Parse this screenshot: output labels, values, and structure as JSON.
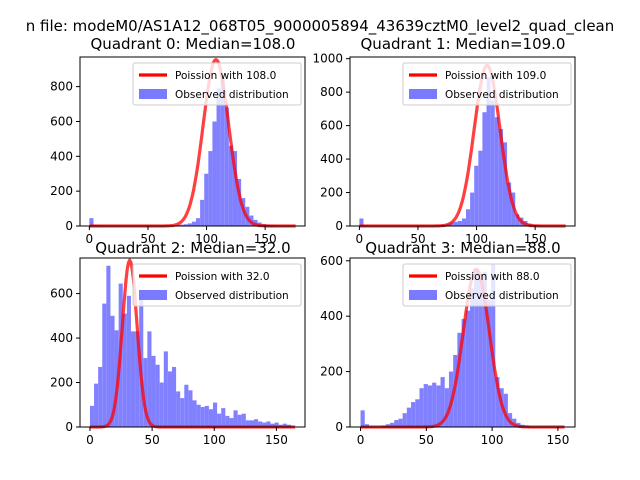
{
  "suptitle": "n file: modeM0/AS1A12_068T05_9000005894_43639cztM0_level2_quad_clean",
  "colors": {
    "hist": "#7a7aff",
    "fit": "#ff0000",
    "axis": "#000000",
    "bg": "#ffffff"
  },
  "chart_data": [
    {
      "type": "bar",
      "title": "Quadrant 0: Median=108.0",
      "xlim": [
        -8,
        184
      ],
      "ylim": [
        0,
        970
      ],
      "xticks": [
        0,
        50,
        100,
        150
      ],
      "yticks": [
        0,
        200,
        400,
        600,
        800
      ],
      "bin_width": 3.5,
      "bins": [
        [
          0,
          45
        ],
        [
          3.5,
          5
        ],
        [
          70,
          3
        ],
        [
          73.5,
          5
        ],
        [
          77,
          8
        ],
        [
          80.5,
          10
        ],
        [
          84,
          15
        ],
        [
          87.5,
          25
        ],
        [
          91,
          45
        ],
        [
          94.5,
          150
        ],
        [
          98,
          300
        ],
        [
          101.5,
          430
        ],
        [
          105,
          600
        ],
        [
          108.5,
          790
        ],
        [
          112,
          850
        ],
        [
          115.5,
          680
        ],
        [
          119,
          460
        ],
        [
          122.5,
          430
        ],
        [
          126,
          270
        ],
        [
          129.5,
          160
        ],
        [
          133,
          110
        ],
        [
          136.5,
          60
        ],
        [
          140,
          35
        ],
        [
          143.5,
          20
        ],
        [
          147,
          12
        ],
        [
          150.5,
          8
        ],
        [
          154,
          5
        ],
        [
          157.5,
          3
        ]
      ],
      "fit": {
        "label": "Poission with 108.0",
        "mean": 108,
        "peak": 955
      },
      "legend": {
        "placement": "top-right",
        "entries": [
          "Poission with 108.0",
          "Observed distribution"
        ]
      }
    },
    {
      "type": "bar",
      "title": "Quadrant 1: Median=109.0",
      "xlim": [
        -8,
        184
      ],
      "ylim": [
        0,
        1010
      ],
      "xticks": [
        0,
        50,
        100,
        150
      ],
      "yticks": [
        0,
        200,
        400,
        600,
        800,
        1000
      ],
      "bin_width": 3.5,
      "bins": [
        [
          0,
          45
        ],
        [
          3.5,
          5
        ],
        [
          66.5,
          5
        ],
        [
          70,
          8
        ],
        [
          73.5,
          12
        ],
        [
          77,
          20
        ],
        [
          80.5,
          25
        ],
        [
          84,
          30
        ],
        [
          87.5,
          45
        ],
        [
          91,
          100
        ],
        [
          94.5,
          200
        ],
        [
          98,
          360
        ],
        [
          101.5,
          450
        ],
        [
          105,
          680
        ],
        [
          108.5,
          890
        ],
        [
          112,
          750
        ],
        [
          115.5,
          650
        ],
        [
          119,
          580
        ],
        [
          122.5,
          500
        ],
        [
          126,
          260
        ],
        [
          129.5,
          200
        ],
        [
          133,
          70
        ],
        [
          136.5,
          50
        ],
        [
          140,
          30
        ],
        [
          143.5,
          15
        ],
        [
          147,
          8
        ],
        [
          150.5,
          5
        ]
      ],
      "fit": {
        "label": "Poission with 109.0",
        "mean": 109,
        "peak": 960
      },
      "legend": {
        "placement": "top-right",
        "entries": [
          "Poission with 109.0",
          "Observed distribution"
        ]
      }
    },
    {
      "type": "bar",
      "title": "Quadrant 2: Median=32.0",
      "xlim": [
        -8,
        173
      ],
      "ylim": [
        0,
        760
      ],
      "xticks": [
        0,
        50,
        100,
        150
      ],
      "yticks": [
        0,
        200,
        400,
        600
      ],
      "bin_width": 3.3,
      "bins": [
        [
          0,
          95
        ],
        [
          3.3,
          195
        ],
        [
          6.6,
          270
        ],
        [
          9.9,
          555
        ],
        [
          13.2,
          725
        ],
        [
          16.5,
          500
        ],
        [
          19.8,
          435
        ],
        [
          23.1,
          645
        ],
        [
          26.4,
          510
        ],
        [
          29.7,
          590
        ],
        [
          33,
          430
        ],
        [
          36.3,
          430
        ],
        [
          39.6,
          610
        ],
        [
          42.9,
          310
        ],
        [
          46.2,
          430
        ],
        [
          49.5,
          320
        ],
        [
          52.8,
          280
        ],
        [
          56.1,
          200
        ],
        [
          59.4,
          340
        ],
        [
          62.7,
          250
        ],
        [
          66,
          270
        ],
        [
          69.3,
          160
        ],
        [
          72.6,
          130
        ],
        [
          75.9,
          190
        ],
        [
          79.2,
          165
        ],
        [
          82.5,
          120
        ],
        [
          85.8,
          100
        ],
        [
          89.1,
          90
        ],
        [
          92.4,
          95
        ],
        [
          95.7,
          80
        ],
        [
          99,
          110
        ],
        [
          102.3,
          60
        ],
        [
          105.6,
          85
        ],
        [
          108.9,
          50
        ],
        [
          112.2,
          40
        ],
        [
          115.5,
          75
        ],
        [
          118.8,
          55
        ],
        [
          122.1,
          60
        ],
        [
          125.4,
          30
        ],
        [
          128.7,
          30
        ],
        [
          132,
          35
        ],
        [
          135.3,
          25
        ],
        [
          138.6,
          20
        ],
        [
          141.9,
          25
        ],
        [
          145.2,
          15
        ],
        [
          148.5,
          20
        ],
        [
          151.8,
          10
        ],
        [
          155.1,
          15
        ],
        [
          158.4,
          10
        ]
      ],
      "fit": {
        "label": "Poission with 32.0",
        "mean": 32,
        "peak": 750
      },
      "legend": {
        "placement": "top-right",
        "entries": [
          "Poission with 32.0",
          "Observed distribution"
        ]
      }
    },
    {
      "type": "bar",
      "title": "Quadrant 3: Median=88.0",
      "xlim": [
        -8,
        163
      ],
      "ylim": [
        0,
        610
      ],
      "xticks": [
        0,
        50,
        100,
        150
      ],
      "yticks": [
        0,
        200,
        400,
        600
      ],
      "bin_width": 3.2,
      "bins": [
        [
          0,
          60
        ],
        [
          3.2,
          10
        ],
        [
          16,
          5
        ],
        [
          19.2,
          10
        ],
        [
          22.4,
          15
        ],
        [
          25.6,
          25
        ],
        [
          28.8,
          30
        ],
        [
          32,
          50
        ],
        [
          35.2,
          70
        ],
        [
          38.4,
          90
        ],
        [
          41.6,
          100
        ],
        [
          44.8,
          140
        ],
        [
          48,
          155
        ],
        [
          51.2,
          150
        ],
        [
          54.4,
          160
        ],
        [
          57.6,
          150
        ],
        [
          60.8,
          180
        ],
        [
          64,
          140
        ],
        [
          67.2,
          200
        ],
        [
          70.4,
          260
        ],
        [
          73.6,
          340
        ],
        [
          76.8,
          390
        ],
        [
          80,
          420
        ],
        [
          83.2,
          500
        ],
        [
          86.4,
          570
        ],
        [
          89.6,
          540
        ],
        [
          92.8,
          560
        ],
        [
          96,
          460
        ],
        [
          99.2,
          590
        ],
        [
          102.4,
          180
        ],
        [
          105.6,
          140
        ],
        [
          108.8,
          120
        ],
        [
          112,
          50
        ],
        [
          115.2,
          30
        ],
        [
          118.4,
          15
        ],
        [
          121.6,
          8
        ],
        [
          124.8,
          5
        ]
      ],
      "fit": {
        "label": "Poission with 88.0",
        "mean": 88,
        "peak": 570
      },
      "legend": {
        "placement": "top-right",
        "entries": [
          "Poission with 88.0",
          "Observed distribution"
        ]
      }
    }
  ]
}
